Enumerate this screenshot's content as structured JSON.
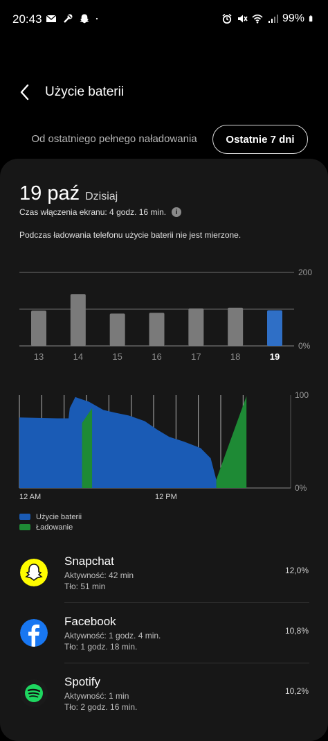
{
  "status_bar": {
    "time": "20:43",
    "battery": "99%",
    "left_icons": [
      "mail-icon",
      "tools-icon",
      "snapchat-ghost-icon",
      "dot-icon"
    ],
    "right_icons": [
      "alarm-icon",
      "mute-icon",
      "wifi-icon",
      "signal-icon",
      "battery-icon"
    ]
  },
  "header": {
    "title": "Użycie baterii"
  },
  "period_tabs": {
    "since_full_charge": "Od ostatniego pełnego naładowania",
    "last_7_days": "Ostatnie 7 dni",
    "selected": "last_7_days"
  },
  "summary": {
    "date": "19 paź",
    "date_note": "Dzisiaj",
    "screen_time": "Czas włączenia ekranu: 4 godz. 16 min.",
    "charging_note": "Podczas ładowania telefonu użycie baterii nie jest mierzone."
  },
  "chart_data": [
    {
      "type": "bar",
      "categories": [
        "13",
        "14",
        "15",
        "16",
        "17",
        "18",
        "19"
      ],
      "values": [
        96,
        141,
        88,
        90,
        102,
        104,
        97
      ],
      "selected": "19",
      "y_ticks": [
        "200",
        "0%"
      ],
      "ylim": [
        0,
        200
      ],
      "gridlines": [
        0,
        100,
        200
      ],
      "colors": {
        "bar": "#7a7a7a",
        "selected": "#2f6fc6"
      }
    },
    {
      "type": "area",
      "y_ticks": [
        "100",
        "0%"
      ],
      "ylim": [
        0,
        100
      ],
      "x_labels": [
        "12 AM",
        "12 PM"
      ],
      "legend": [
        {
          "name": "Użycie baterii",
          "color": "#1a5bb5"
        },
        {
          "name": "Ładowanie",
          "color": "#1e8a35"
        }
      ],
      "series": [
        {
          "name": "Użycie baterii",
          "x": [
            0,
            3.4,
            4.4,
            4.5,
            5.0,
            5.2,
            6.2,
            7.5,
            8.6,
            9.8,
            11.2,
            12.3,
            13.4,
            14.7,
            16.2,
            17.1,
            17.6
          ],
          "y": [
            76,
            75,
            75,
            86,
            98,
            97,
            93,
            84,
            81,
            78,
            72,
            63,
            55,
            50,
            43,
            32,
            9
          ]
        },
        {
          "name": "Ładowanie",
          "segments": [
            {
              "x": [
                5.6,
                6.5
              ],
              "y": [
                70,
                86
              ]
            },
            {
              "x": [
                17.6,
                20.3
              ],
              "y": [
                9,
                99
              ]
            }
          ]
        }
      ]
    }
  ],
  "apps": [
    {
      "name": "Snapchat",
      "active": "Aktywność: 42 min",
      "background": "Tło: 51 min",
      "percent": "12,0%",
      "icon": "snapchat-icon"
    },
    {
      "name": "Facebook",
      "active": "Aktywność: 1 godz. 4 min.",
      "background": "Tło: 1 godz. 18 min.",
      "percent": "10,8%",
      "icon": "facebook-icon"
    },
    {
      "name": "Spotify",
      "active": "Aktywność: 1 min",
      "background": "Tło: 2 godz. 16 min.",
      "percent": "10,2%",
      "icon": "spotify-icon"
    }
  ]
}
